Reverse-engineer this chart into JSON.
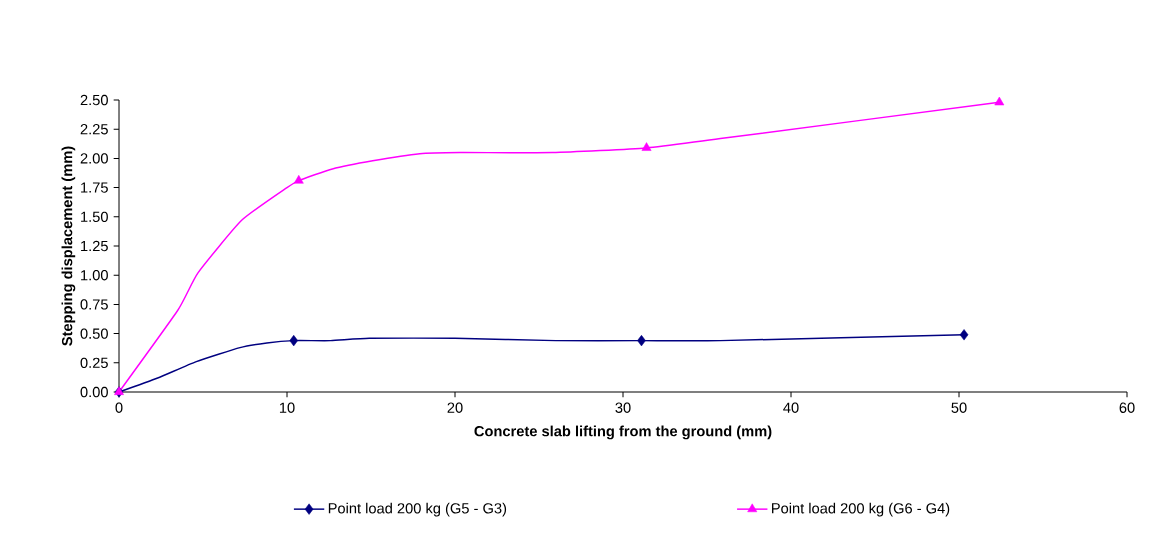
{
  "chart_data": {
    "type": "line",
    "xlabel": "Concrete slab lifting from the ground (mm)",
    "ylabel": "Stepping displacement (mm)",
    "xlim": [
      0,
      60
    ],
    "xticks": [
      0,
      10,
      20,
      30,
      40,
      50,
      60
    ],
    "ylim": [
      0,
      2.5
    ],
    "yticks": [
      {
        "value": 0,
        "label": "0.00"
      },
      {
        "value": 0.25,
        "label": "0.25"
      },
      {
        "value": 0.5,
        "label": "0.50"
      },
      {
        "value": 0.75,
        "label": "0.75"
      },
      {
        "value": 1,
        "label": "1.00"
      },
      {
        "value": 1.25,
        "label": "1.25"
      },
      {
        "value": 1.5,
        "label": "1.50"
      },
      {
        "value": 1.75,
        "label": "1.75"
      },
      {
        "value": 2,
        "label": "2.00"
      },
      {
        "value": 2.25,
        "label": "2.25"
      },
      {
        "value": 2.5,
        "label": "2.50"
      }
    ],
    "grid": false,
    "legend": "bottom",
    "line_style": "solid",
    "series": [
      {
        "marker": "none",
        "color": "#000080",
        "x": [
          0,
          2.3,
          4.6,
          7.2,
          8.8,
          10.4,
          12.6,
          14.9,
          20,
          26,
          31.1,
          35.8,
          50.3
        ],
        "values": [
          0,
          0.12,
          0.26,
          0.38,
          0.42,
          0.44,
          0.44,
          0.46,
          0.46,
          0.44,
          0.44,
          0.44,
          0.49
        ]
      },
      {
        "marker": "none",
        "color": "#ff00ff",
        "x": [
          0,
          3.5,
          4.7,
          7.3,
          10.0,
          10.7,
          12.7,
          15.1,
          17.9,
          20.3,
          25.8,
          31.4,
          35.8,
          52.4
        ],
        "values": [
          0,
          0.7,
          1.02,
          1.47,
          1.75,
          1.81,
          1.91,
          1.98,
          2.04,
          2.05,
          2.05,
          2.09,
          2.17,
          2.48
        ]
      },
      {
        "type": "scatter",
        "name": "Point load 200 kg (G5 - G3)",
        "marker": "diamond",
        "color": "#000080",
        "x": [
          0,
          10.4,
          31.1,
          50.3
        ],
        "values": [
          0,
          0.44,
          0.44,
          0.49
        ]
      },
      {
        "type": "scatter",
        "name": "Point load 200 kg (G6 - G4)",
        "marker": "triangle",
        "color": "#ff00ff",
        "x": [
          0,
          10.7,
          31.4,
          52.4
        ],
        "values": [
          0,
          1.81,
          2.09,
          2.48
        ]
      }
    ]
  }
}
